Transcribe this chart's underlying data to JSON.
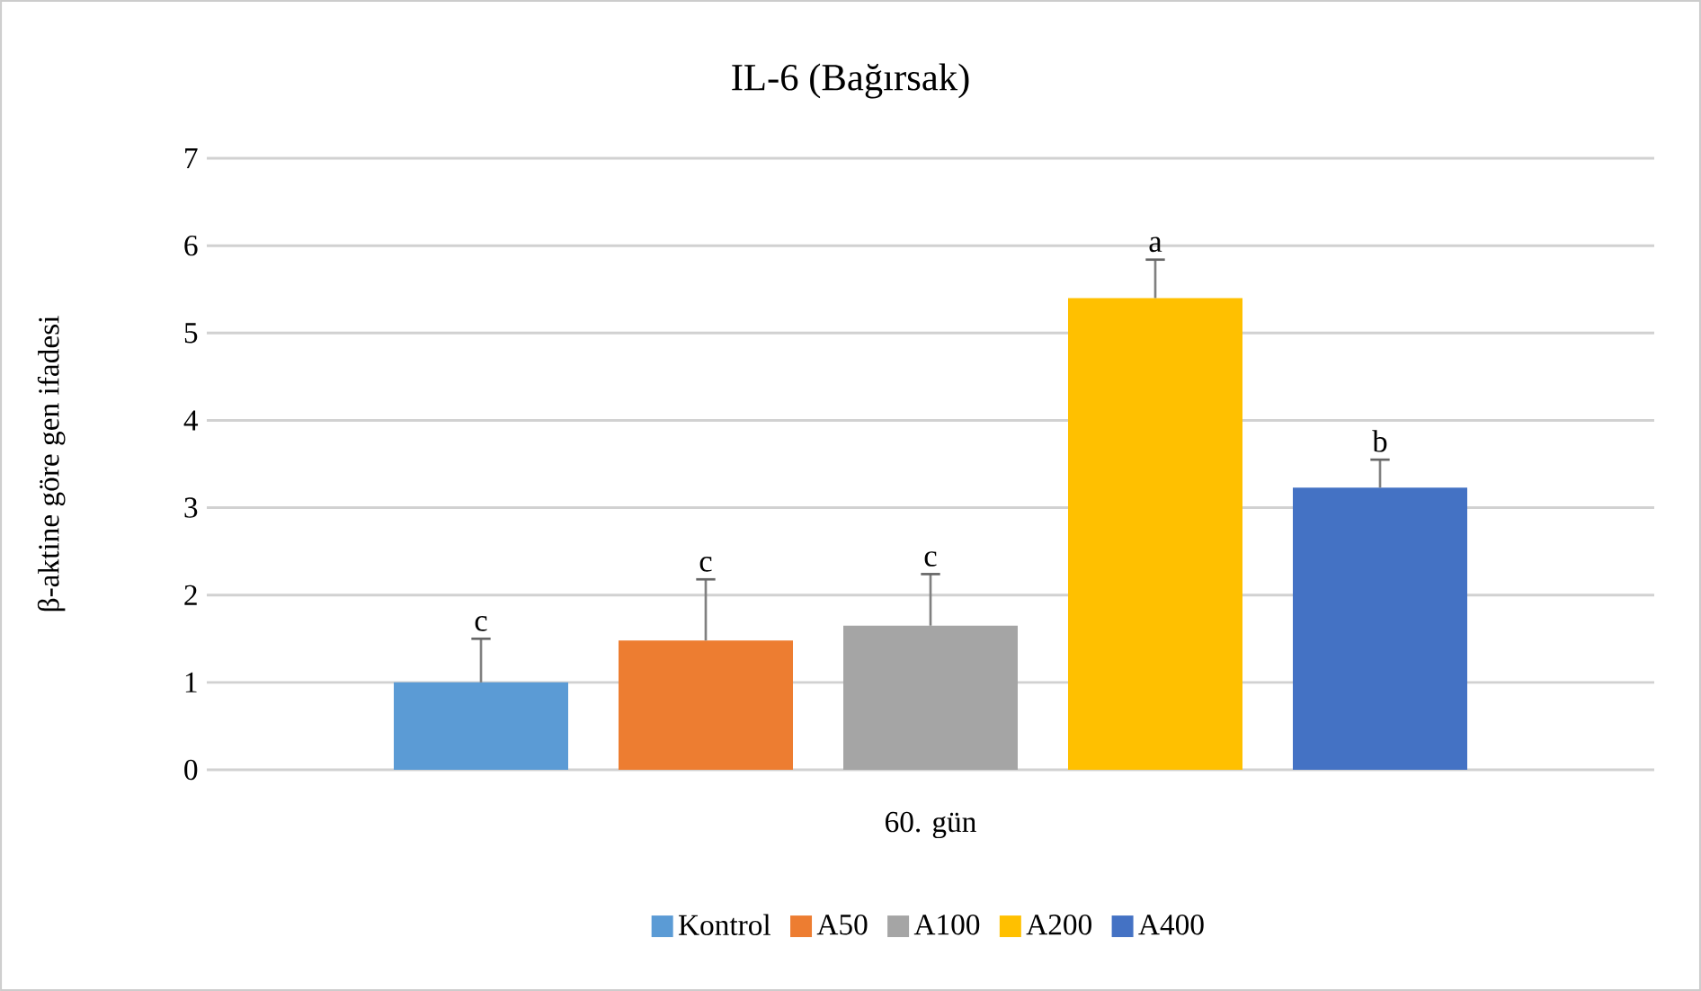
{
  "chart_data": {
    "type": "bar",
    "title": "IL-6 (Bağırsak)",
    "ylabel": "β-aktine göre gen ifadesi",
    "categories": [
      "60. gün"
    ],
    "series": [
      {
        "name": "Kontrol",
        "color": "#5b9bd5",
        "values": [
          1.0
        ],
        "errors": [
          [
            1.0,
            1.5
          ]
        ],
        "value_labels": [
          "c"
        ]
      },
      {
        "name": "A50",
        "color": "#ed7d31",
        "values": [
          1.48
        ],
        "errors": [
          [
            1.48,
            2.18
          ]
        ],
        "value_labels": [
          "c"
        ]
      },
      {
        "name": "A100",
        "color": "#a5a5a5",
        "values": [
          1.65
        ],
        "errors": [
          [
            1.65,
            2.24
          ]
        ],
        "value_labels": [
          "c"
        ]
      },
      {
        "name": "A200",
        "color": "#ffc000",
        "values": [
          5.4
        ],
        "errors": [
          [
            5.4,
            5.84
          ]
        ],
        "value_labels": [
          "a"
        ]
      },
      {
        "name": "A400",
        "color": "#4472c4",
        "values": [
          3.23
        ],
        "errors": [
          [
            3.23,
            3.55
          ]
        ],
        "value_labels": [
          "b"
        ]
      }
    ],
    "ylim": [
      0,
      7
    ],
    "yticks": [
      0,
      1,
      2,
      3,
      4,
      5,
      6,
      7
    ],
    "grid": "y",
    "legend": "bottom"
  }
}
